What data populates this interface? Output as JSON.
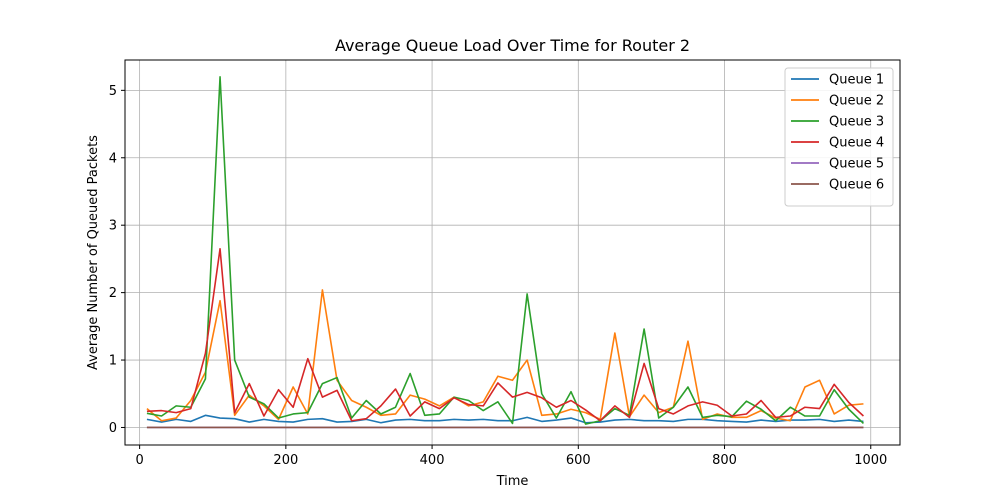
{
  "chart_data": {
    "type": "line",
    "title": "Average Queue Load Over Time for Router 2",
    "xlabel": "Time",
    "ylabel": "Average Number of Queued Packets",
    "xlim": [
      -20,
      1040
    ],
    "ylim": [
      -0.26,
      5.45
    ],
    "xticks": [
      0,
      200,
      400,
      600,
      800,
      1000
    ],
    "yticks": [
      0,
      1,
      2,
      3,
      4,
      5
    ],
    "grid": true,
    "legend_position": "top-right",
    "x": [
      10,
      30,
      50,
      70,
      90,
      110,
      130,
      150,
      170,
      190,
      210,
      230,
      250,
      270,
      290,
      310,
      330,
      350,
      370,
      390,
      410,
      430,
      450,
      470,
      490,
      510,
      530,
      550,
      570,
      590,
      610,
      630,
      650,
      670,
      690,
      710,
      730,
      750,
      770,
      790,
      810,
      830,
      850,
      870,
      890,
      910,
      930,
      950,
      970,
      990
    ],
    "series": [
      {
        "name": "Queue 1",
        "color": "#1f77b4",
        "values": [
          0.12,
          0.08,
          0.12,
          0.09,
          0.18,
          0.14,
          0.13,
          0.08,
          0.12,
          0.09,
          0.08,
          0.12,
          0.13,
          0.08,
          0.09,
          0.12,
          0.07,
          0.11,
          0.12,
          0.1,
          0.1,
          0.12,
          0.11,
          0.12,
          0.1,
          0.1,
          0.15,
          0.09,
          0.11,
          0.14,
          0.07,
          0.08,
          0.11,
          0.12,
          0.1,
          0.1,
          0.09,
          0.12,
          0.12,
          0.1,
          0.09,
          0.08,
          0.11,
          0.09,
          0.11,
          0.11,
          0.12,
          0.09,
          0.11,
          0.09
        ]
      },
      {
        "name": "Queue 2",
        "color": "#ff7f0e",
        "values": [
          0.28,
          0.1,
          0.14,
          0.4,
          0.82,
          1.88,
          0.18,
          0.48,
          0.32,
          0.12,
          0.6,
          0.2,
          2.04,
          0.7,
          0.4,
          0.3,
          0.18,
          0.2,
          0.48,
          0.42,
          0.32,
          0.45,
          0.32,
          0.38,
          0.76,
          0.7,
          1.0,
          0.18,
          0.2,
          0.27,
          0.22,
          0.12,
          1.4,
          0.16,
          0.48,
          0.22,
          0.3,
          1.28,
          0.12,
          0.2,
          0.15,
          0.15,
          0.25,
          0.14,
          0.1,
          0.6,
          0.7,
          0.2,
          0.33,
          0.35
        ]
      },
      {
        "name": "Queue 3",
        "color": "#2ca02c",
        "values": [
          0.21,
          0.17,
          0.32,
          0.3,
          0.72,
          5.2,
          1.0,
          0.45,
          0.35,
          0.14,
          0.2,
          0.22,
          0.65,
          0.74,
          0.14,
          0.4,
          0.2,
          0.3,
          0.8,
          0.18,
          0.2,
          0.45,
          0.4,
          0.25,
          0.38,
          0.06,
          1.98,
          0.5,
          0.14,
          0.53,
          0.05,
          0.1,
          0.28,
          0.18,
          1.46,
          0.14,
          0.3,
          0.6,
          0.15,
          0.18,
          0.16,
          0.39,
          0.27,
          0.1,
          0.3,
          0.17,
          0.17,
          0.56,
          0.27,
          0.06
        ]
      },
      {
        "name": "Queue 4",
        "color": "#d62728",
        "values": [
          0.24,
          0.25,
          0.22,
          0.28,
          1.1,
          2.65,
          0.22,
          0.65,
          0.17,
          0.56,
          0.3,
          1.02,
          0.45,
          0.55,
          0.1,
          0.13,
          0.32,
          0.57,
          0.17,
          0.38,
          0.28,
          0.44,
          0.34,
          0.32,
          0.66,
          0.45,
          0.52,
          0.44,
          0.3,
          0.4,
          0.26,
          0.1,
          0.32,
          0.15,
          0.95,
          0.28,
          0.2,
          0.32,
          0.38,
          0.33,
          0.17,
          0.2,
          0.4,
          0.15,
          0.17,
          0.3,
          0.28,
          0.64,
          0.37,
          0.17
        ]
      },
      {
        "name": "Queue 5",
        "color": "#9467bd",
        "values": [
          0.0,
          0.0,
          0.0,
          0.0,
          0.0,
          0.0,
          0.0,
          0.0,
          0.0,
          0.0,
          0.0,
          0.0,
          0.0,
          0.0,
          0.0,
          0.0,
          0.0,
          0.0,
          0.0,
          0.0,
          0.0,
          0.0,
          0.0,
          0.0,
          0.0,
          0.0,
          0.0,
          0.0,
          0.0,
          0.0,
          0.0,
          0.0,
          0.0,
          0.0,
          0.0,
          0.0,
          0.0,
          0.0,
          0.0,
          0.0,
          0.0,
          0.0,
          0.0,
          0.0,
          0.0,
          0.0,
          0.0,
          0.0,
          0.0,
          0.0
        ]
      },
      {
        "name": "Queue 6",
        "color": "#8c564b",
        "values": [
          0.0,
          0.0,
          0.0,
          0.0,
          0.0,
          0.0,
          0.0,
          0.0,
          0.0,
          0.0,
          0.0,
          0.0,
          0.0,
          0.0,
          0.0,
          0.0,
          0.0,
          0.0,
          0.0,
          0.0,
          0.0,
          0.0,
          0.0,
          0.0,
          0.0,
          0.0,
          0.0,
          0.0,
          0.0,
          0.0,
          0.0,
          0.0,
          0.0,
          0.0,
          0.0,
          0.0,
          0.0,
          0.0,
          0.0,
          0.0,
          0.0,
          0.0,
          0.0,
          0.0,
          0.0,
          0.0,
          0.0,
          0.0,
          0.0,
          0.0
        ]
      }
    ]
  }
}
